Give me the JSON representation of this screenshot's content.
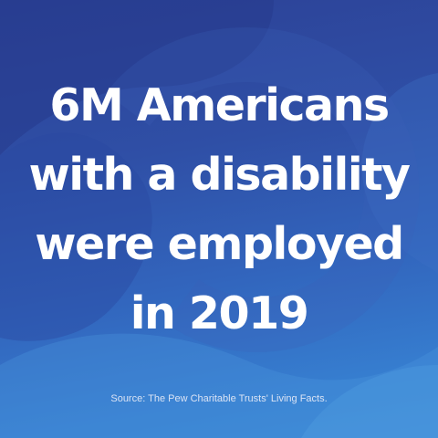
{
  "headline": {
    "lines": [
      "6M Americans",
      "with a disability",
      "were employed",
      "in 2019"
    ]
  },
  "source": {
    "text": "Source: The Pew Charitable Trusts' Living Facts."
  },
  "colors": {
    "background_top": "#2c4196",
    "background_bottom": "#3a89d6",
    "text": "#ffffff",
    "source_text": "#d9e3f5"
  }
}
